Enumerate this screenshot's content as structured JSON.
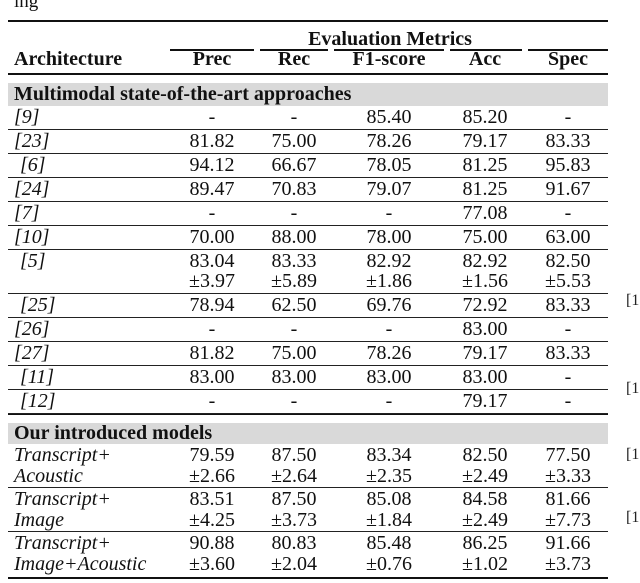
{
  "caption_fragment": "ing",
  "header": {
    "group": "Evaluation Metrics",
    "arch": "Architecture",
    "cols": [
      "Prec",
      "Rec",
      "F1-score",
      "Acc",
      "Spec"
    ]
  },
  "sections": [
    "Multimodal state-of-the-art approaches",
    "Our introduced models"
  ],
  "rows": [
    {
      "arch": "[9]",
      "vals": [
        "-",
        "-",
        "85.40",
        "85.20",
        "-"
      ]
    },
    {
      "arch": "[23]",
      "vals": [
        "81.82",
        "75.00",
        "78.26",
        "79.17",
        "83.33"
      ]
    },
    {
      "arch": "[6]",
      "vals": [
        "94.12",
        "66.67",
        "78.05",
        "81.25",
        "95.83"
      ]
    },
    {
      "arch": "[24]",
      "vals": [
        "89.47",
        "70.83",
        "79.07",
        "81.25",
        "91.67"
      ]
    },
    {
      "arch": "[7]",
      "vals": [
        "-",
        "-",
        "-",
        "77.08",
        "-"
      ]
    },
    {
      "arch": "[10]",
      "vals": [
        "70.00",
        "88.00",
        "78.00",
        "75.00",
        "63.00"
      ]
    },
    {
      "arch": "[5]",
      "vals": [
        "83.04",
        "83.33",
        "82.92",
        "82.92",
        "82.50"
      ],
      "sd": [
        "±3.97",
        "±5.89",
        "±1.86",
        "±1.56",
        "±5.53"
      ]
    },
    {
      "arch": "[25]",
      "vals": [
        "78.94",
        "62.50",
        "69.76",
        "72.92",
        "83.33"
      ]
    },
    {
      "arch": "[26]",
      "vals": [
        "-",
        "-",
        "-",
        "83.00",
        "-"
      ]
    },
    {
      "arch": "[27]",
      "vals": [
        "81.82",
        "75.00",
        "78.26",
        "79.17",
        "83.33"
      ]
    },
    {
      "arch": "[11]",
      "vals": [
        "83.00",
        "83.00",
        "83.00",
        "83.00",
        "-"
      ]
    },
    {
      "arch": "[12]",
      "vals": [
        "-",
        "-",
        "-",
        "79.17",
        "-"
      ]
    }
  ],
  "ours": [
    {
      "arch": "Transcript+",
      "arch2": "Acoustic",
      "vals": [
        "79.59",
        "87.50",
        "83.34",
        "82.50",
        "77.50"
      ],
      "sd": [
        "±2.66",
        "±2.64",
        "±2.35",
        "±2.49",
        "±3.33"
      ]
    },
    {
      "arch": "Transcript+",
      "arch2": "Image",
      "vals": [
        "83.51",
        "87.50",
        "85.08",
        "84.58",
        "81.66"
      ],
      "sd": [
        "±4.25",
        "±3.73",
        "±1.84",
        "±2.49",
        "±7.73"
      ]
    },
    {
      "arch": "Transcript+",
      "arch2": "Image+Acoustic",
      "vals": [
        "90.88",
        "80.83",
        "85.48",
        "86.25",
        "91.66"
      ],
      "sd": [
        "±3.60",
        "±2.04",
        "±0.76",
        "±1.02",
        "±3.73"
      ]
    }
  ],
  "margin_marks": [
    "[1",
    "[1",
    "[1",
    "[1"
  ]
}
